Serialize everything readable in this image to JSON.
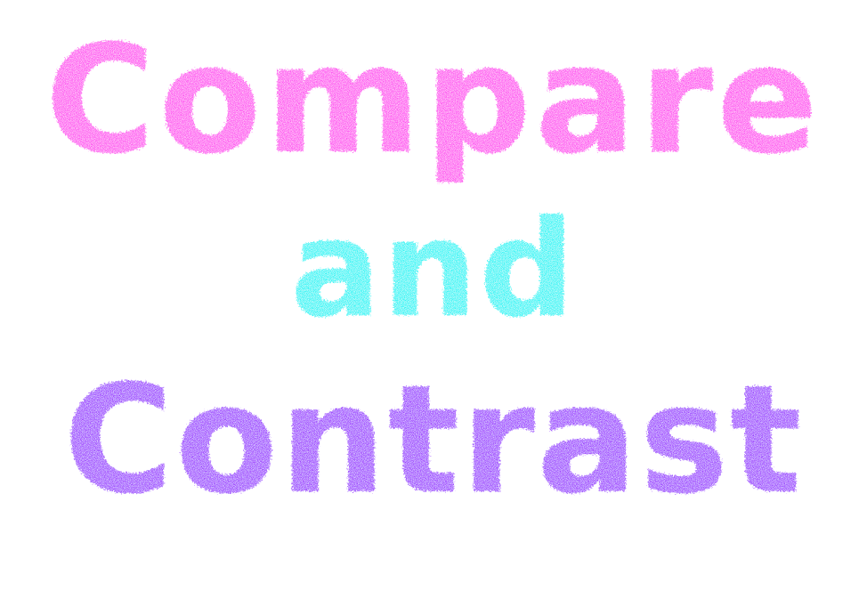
{
  "title_lines": [
    {
      "text": "Compare",
      "color": "#ff44f0"
    },
    {
      "text": "and",
      "color": "#14f5f5"
    },
    {
      "text": "Contrast",
      "color": "#9933ff"
    }
  ],
  "background_color": "#ffffff"
}
